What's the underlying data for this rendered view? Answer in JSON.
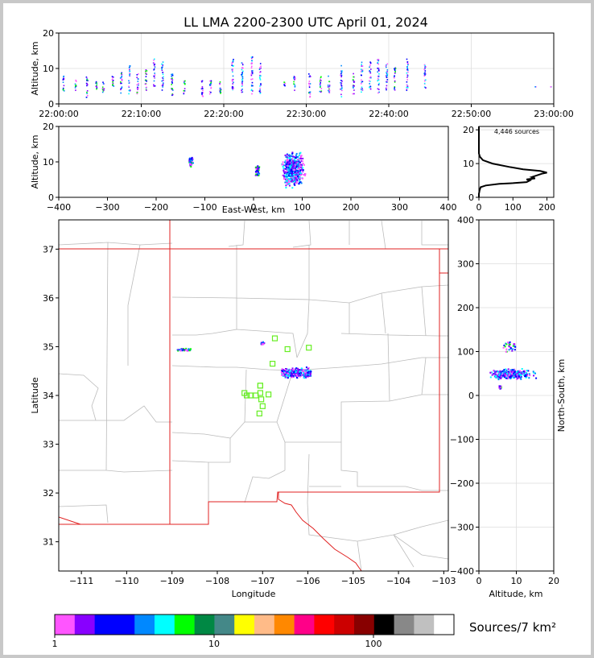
{
  "title": "LL LMA 2200-2300 UTC April 01, 2024",
  "colors": {
    "plot_frame": "#000000",
    "grid": "#dddddd",
    "state_border": "#e02020",
    "county_border": "#bbbbbb",
    "station_marker": "#66ee22",
    "histogram_line": "#000000"
  },
  "colorbar": {
    "label": "Sources/7 km²",
    "tick_labels": [
      "1",
      "10",
      "100"
    ],
    "scale": "log",
    "colors": [
      "#ff55ff",
      "#8800ff",
      "#0000ff",
      "#0000ff",
      "#0088ff",
      "#00ffff",
      "#00ff00",
      "#008844",
      "#448888",
      "#ffff00",
      "#ffbb88",
      "#ff8800",
      "#ff0088",
      "#ff0000",
      "#cc0000",
      "#880000",
      "#000000",
      "#888888",
      "#c0c0c0",
      "#ffffff"
    ]
  },
  "chart_data": [
    {
      "id": "time_height",
      "type": "scatter",
      "xlabel": "",
      "ylabel": "Altitude, km",
      "x_tick_labels": [
        "22:00:00",
        "22:10:00",
        "22:20:00",
        "22:30:00",
        "22:40:00",
        "22:50:00",
        "23:00:00"
      ],
      "y_tick_labels": [
        "0",
        "10",
        "20"
      ],
      "xlim": [
        "22:00:00",
        "23:00:00"
      ],
      "ylim": [
        0,
        20
      ],
      "grid": true,
      "source_columns": [
        {
          "time": "22:00:30",
          "alt_min": 3,
          "alt_max": 8
        },
        {
          "time": "22:02:00",
          "alt_min": 4,
          "alt_max": 7
        },
        {
          "time": "22:03:20",
          "alt_min": 2,
          "alt_max": 8
        },
        {
          "time": "22:04:30",
          "alt_min": 4,
          "alt_max": 7
        },
        {
          "time": "22:05:20",
          "alt_min": 3,
          "alt_max": 7
        },
        {
          "time": "22:06:30",
          "alt_min": 4,
          "alt_max": 8
        },
        {
          "time": "22:07:30",
          "alt_min": 3,
          "alt_max": 9
        },
        {
          "time": "22:08:30",
          "alt_min": 3,
          "alt_max": 11
        },
        {
          "time": "22:09:30",
          "alt_min": 3,
          "alt_max": 9
        },
        {
          "time": "22:10:30",
          "alt_min": 4,
          "alt_max": 10
        },
        {
          "time": "22:11:30",
          "alt_min": 5,
          "alt_max": 13
        },
        {
          "time": "22:12:30",
          "alt_min": 4,
          "alt_max": 12
        },
        {
          "time": "22:13:40",
          "alt_min": 2,
          "alt_max": 9
        },
        {
          "time": "22:15:10",
          "alt_min": 3,
          "alt_max": 7
        },
        {
          "time": "22:17:20",
          "alt_min": 2,
          "alt_max": 7
        },
        {
          "time": "22:18:20",
          "alt_min": 3,
          "alt_max": 8
        },
        {
          "time": "22:19:30",
          "alt_min": 3,
          "alt_max": 7
        },
        {
          "time": "22:21:00",
          "alt_min": 4,
          "alt_max": 13
        },
        {
          "time": "22:22:10",
          "alt_min": 3,
          "alt_max": 12
        },
        {
          "time": "22:23:20",
          "alt_min": 3,
          "alt_max": 14
        },
        {
          "time": "22:24:20",
          "alt_min": 3,
          "alt_max": 12
        },
        {
          "time": "22:27:20",
          "alt_min": 5,
          "alt_max": 7
        },
        {
          "time": "22:28:30",
          "alt_min": 4,
          "alt_max": 8
        },
        {
          "time": "22:30:20",
          "alt_min": 2,
          "alt_max": 9
        },
        {
          "time": "22:31:40",
          "alt_min": 3,
          "alt_max": 8
        },
        {
          "time": "22:32:40",
          "alt_min": 3,
          "alt_max": 8
        },
        {
          "time": "22:34:10",
          "alt_min": 2,
          "alt_max": 11
        },
        {
          "time": "22:35:40",
          "alt_min": 3,
          "alt_max": 9
        },
        {
          "time": "22:36:40",
          "alt_min": 3,
          "alt_max": 12
        },
        {
          "time": "22:37:40",
          "alt_min": 4,
          "alt_max": 12
        },
        {
          "time": "22:38:40",
          "alt_min": 3,
          "alt_max": 13
        },
        {
          "time": "22:39:40",
          "alt_min": 4,
          "alt_max": 12
        },
        {
          "time": "22:40:40",
          "alt_min": 4,
          "alt_max": 11
        },
        {
          "time": "22:42:10",
          "alt_min": 4,
          "alt_max": 13
        },
        {
          "time": "22:44:20",
          "alt_min": 4,
          "alt_max": 12
        },
        {
          "time": "22:57:40",
          "alt_min": 5,
          "alt_max": 5
        },
        {
          "time": "22:59:30",
          "alt_min": 5,
          "alt_max": 5
        }
      ]
    },
    {
      "id": "east_west_altitude",
      "type": "scatter",
      "xlabel": "East-West, km",
      "ylabel": "Altitude, km",
      "x_tick_labels": [
        "−400",
        "−300",
        "−200",
        "−100",
        "0",
        "100",
        "200",
        "300",
        "400"
      ],
      "y_tick_labels": [
        "0",
        "10",
        "20"
      ],
      "xlim": [
        -400,
        400
      ],
      "ylim": [
        0,
        20
      ],
      "clusters": [
        {
          "x_min": -135,
          "x_max": -125,
          "alt_min": 8,
          "alt_max": 12,
          "density": "low"
        },
        {
          "x_min": 0,
          "x_max": 12,
          "alt_min": 5,
          "alt_max": 10,
          "density": "low"
        },
        {
          "x_min": 50,
          "x_max": 110,
          "alt_min": 2,
          "alt_max": 14,
          "density": "high"
        }
      ]
    },
    {
      "id": "altitude_histogram",
      "type": "line",
      "annotation": "4,446 sources",
      "x_tick_labels": [
        "0",
        "100",
        "200"
      ],
      "y_tick_labels": [
        "0",
        "10",
        "20"
      ],
      "xlim": [
        0,
        220
      ],
      "ylim": [
        0,
        21
      ],
      "points": [
        {
          "x": 0,
          "y": 0
        },
        {
          "x": 0,
          "y": 1
        },
        {
          "x": 2,
          "y": 2
        },
        {
          "x": 5,
          "y": 3
        },
        {
          "x": 20,
          "y": 3.5
        },
        {
          "x": 60,
          "y": 4
        },
        {
          "x": 100,
          "y": 4.2
        },
        {
          "x": 140,
          "y": 4.5
        },
        {
          "x": 150,
          "y": 5
        },
        {
          "x": 140,
          "y": 5.3
        },
        {
          "x": 165,
          "y": 5.6
        },
        {
          "x": 155,
          "y": 6
        },
        {
          "x": 170,
          "y": 6.5
        },
        {
          "x": 185,
          "y": 7
        },
        {
          "x": 200,
          "y": 7.3
        },
        {
          "x": 180,
          "y": 7.8
        },
        {
          "x": 130,
          "y": 8.3
        },
        {
          "x": 90,
          "y": 9
        },
        {
          "x": 40,
          "y": 10
        },
        {
          "x": 12,
          "y": 11
        },
        {
          "x": 3,
          "y": 12
        },
        {
          "x": 0,
          "y": 13
        },
        {
          "x": 0,
          "y": 21
        }
      ]
    },
    {
      "id": "plan_view",
      "type": "scatter",
      "xlabel": "Longitude",
      "ylabel": "Latitude",
      "x_tick_labels": [
        "−111",
        "−110",
        "−109",
        "−108",
        "−107",
        "−106",
        "−105",
        "−104",
        "−103"
      ],
      "y_tick_labels": [
        "31",
        "32",
        "33",
        "34",
        "35",
        "36",
        "37"
      ],
      "xlim": [
        -111.5,
        -102.9
      ],
      "ylim": [
        30.4,
        37.6
      ],
      "clusters": [
        {
          "lon_min": -108.9,
          "lon_max": -108.6,
          "lat_min": 34.9,
          "lat_max": 35.0,
          "density": "low"
        },
        {
          "lon_min": -107.05,
          "lon_max": -106.98,
          "lat_min": 35.05,
          "lat_max": 35.12,
          "density": "low"
        },
        {
          "lon_min": -106.6,
          "lon_max": -105.95,
          "lat_min": 34.35,
          "lat_max": 34.6,
          "density": "high"
        }
      ],
      "stations": [
        {
          "lon": -107.4,
          "lat": 34.05
        },
        {
          "lon": -107.35,
          "lat": 34.0
        },
        {
          "lon": -107.27,
          "lat": 34.0
        },
        {
          "lon": -107.15,
          "lat": 34.0
        },
        {
          "lon": -107.05,
          "lat": 34.2
        },
        {
          "lon": -107.05,
          "lat": 34.05
        },
        {
          "lon": -107.03,
          "lat": 33.92
        },
        {
          "lon": -107.0,
          "lat": 33.78
        },
        {
          "lon": -107.07,
          "lat": 33.63
        },
        {
          "lon": -106.87,
          "lat": 34.02
        },
        {
          "lon": -106.78,
          "lat": 34.65
        },
        {
          "lon": -106.73,
          "lat": 35.17
        },
        {
          "lon": -106.45,
          "lat": 34.95
        },
        {
          "lon": -105.98,
          "lat": 34.98
        },
        {
          "lon": -107.05,
          "lat": 34.2
        }
      ]
    },
    {
      "id": "altitude_north_south",
      "type": "scatter",
      "xlabel": "Altitude, km",
      "ylabel": "North-South, km",
      "x_tick_labels": [
        "0",
        "10",
        "20"
      ],
      "y_tick_labels": [
        "−400",
        "−300",
        "−200",
        "−100",
        "0",
        "100",
        "200",
        "300",
        "400"
      ],
      "xlim": [
        0,
        20
      ],
      "ylim": [
        -400,
        400
      ],
      "clusters": [
        {
          "alt_min": 1,
          "alt_max": 16,
          "ns_min": 35,
          "ns_max": 65,
          "density": "high"
        },
        {
          "alt_min": 5,
          "alt_max": 11,
          "ns_min": 95,
          "ns_max": 135,
          "density": "low"
        },
        {
          "alt_min": 5,
          "alt_max": 6,
          "ns_min": 15,
          "ns_max": 25,
          "density": "low"
        }
      ]
    }
  ]
}
